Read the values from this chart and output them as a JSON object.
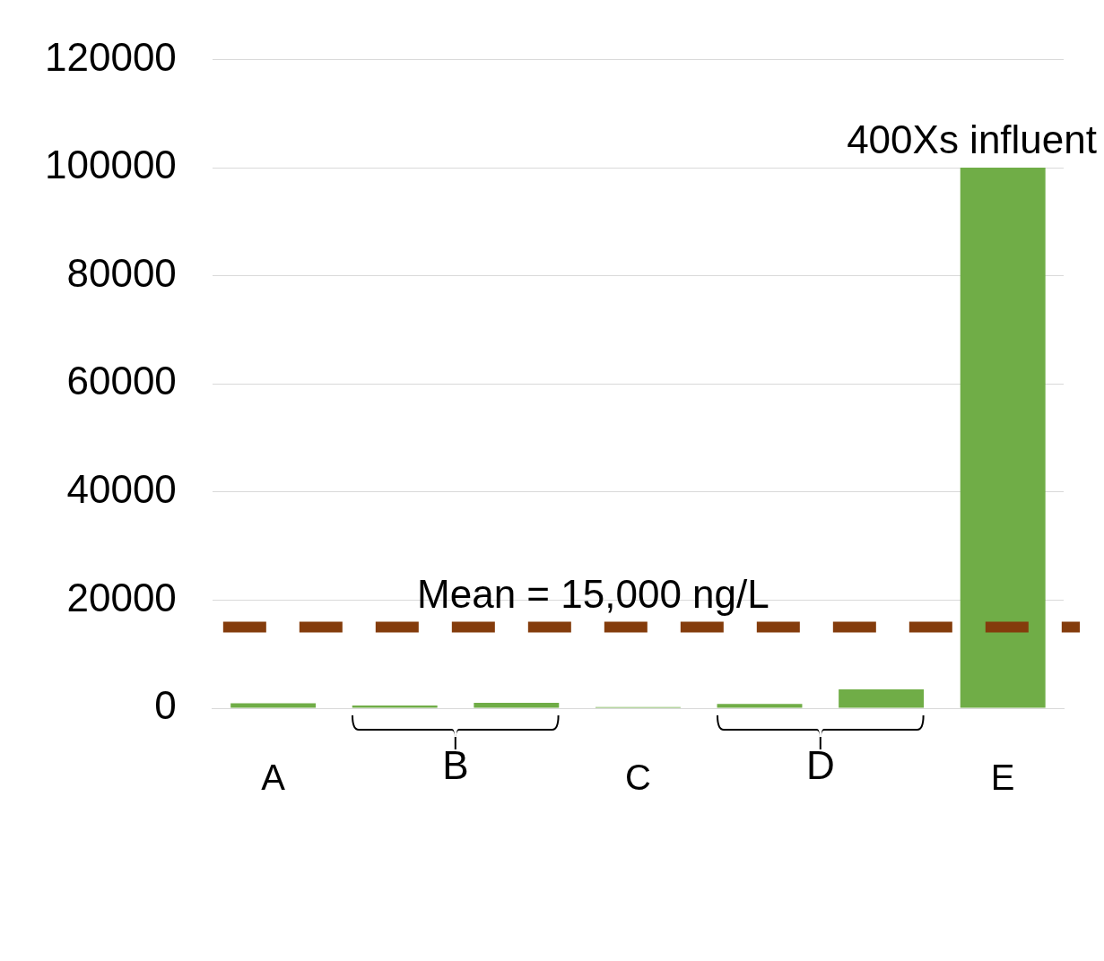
{
  "chart_data": {
    "type": "bar",
    "categories": [
      "A",
      null,
      null,
      "C",
      null,
      null,
      "E"
    ],
    "values": [
      900,
      500,
      1000,
      200,
      800,
      3500,
      100000
    ],
    "color": "#70ad47",
    "ylim": [
      0,
      120000
    ],
    "yticks": [
      0,
      20000,
      40000,
      60000,
      80000,
      100000,
      120000
    ],
    "grid": "y",
    "legend": false,
    "ref_lines": [
      {
        "axis": "y",
        "value": 15000,
        "label": "Mean = 15,000 ng/L",
        "color": "#843c0c",
        "line_style": "dashed"
      }
    ],
    "annotations": [
      {
        "text": "400Xs influent",
        "x": "E",
        "y": 100000
      },
      "B",
      "D"
    ]
  }
}
